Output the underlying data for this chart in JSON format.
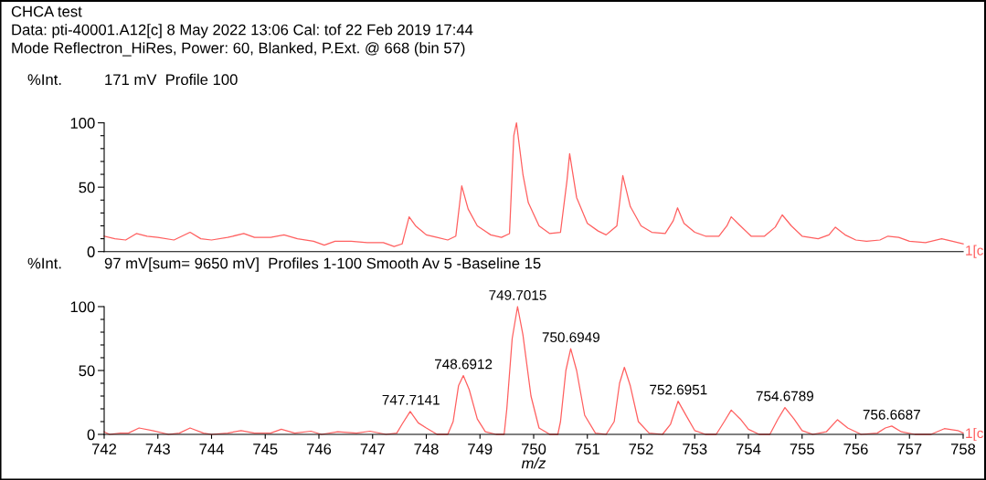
{
  "chart_data": [
    {
      "type": "line",
      "title": "CHCA test",
      "subtitle": "Data: pti-40001.A12[c] 8 May 2022 13:06 Cal: tof 22 Feb 2019 17:44\nMode Reflectron_HiRes, Power: 60, Blanked, P.Ext. @ 668 (bin 57)",
      "ylabel": "%Int.",
      "annotations": [
        "171 mV  Profile 100"
      ],
      "xlim": [
        742,
        758
      ],
      "ylim": [
        0,
        100
      ],
      "yticks": [
        0,
        {
          "value": 10,
          "label": null
        },
        {
          "value": 20,
          "label": null
        },
        {
          "value": 30,
          "label": null
        },
        {
          "value": 40,
          "label": null
        },
        50,
        {
          "value": 60,
          "label": null
        },
        {
          "value": 70,
          "label": null
        },
        {
          "value": 80,
          "label": null
        },
        {
          "value": 90,
          "label": null
        },
        100
      ],
      "tick_labels": "y",
      "grid": false,
      "legend": false,
      "series": [
        {
          "name": "1[c",
          "color": "#ff5f5f",
          "x": [
            742.0,
            742.2,
            742.4,
            742.6,
            742.8,
            743.0,
            743.3,
            743.6,
            743.8,
            744.0,
            744.3,
            744.6,
            744.8,
            745.1,
            745.35,
            745.6,
            745.9,
            746.1,
            746.3,
            746.6,
            746.9,
            747.2,
            747.4,
            747.55,
            747.68,
            747.8,
            748.0,
            748.2,
            748.4,
            748.55,
            748.66,
            748.78,
            748.95,
            749.2,
            749.4,
            749.55,
            749.63,
            749.68,
            749.8,
            749.9,
            750.1,
            750.3,
            750.5,
            750.62,
            750.67,
            750.8,
            751.0,
            751.2,
            751.35,
            751.55,
            751.66,
            751.8,
            752.0,
            752.2,
            752.45,
            752.6,
            752.68,
            752.8,
            753.0,
            753.2,
            753.45,
            753.6,
            753.68,
            753.85,
            754.05,
            754.3,
            754.5,
            754.63,
            754.8,
            755.0,
            755.3,
            755.5,
            755.62,
            755.8,
            756.0,
            756.2,
            756.45,
            756.6,
            756.8,
            757.0,
            757.3,
            757.6,
            757.8,
            758.0
          ],
          "values": [
            12,
            10,
            9,
            14,
            12,
            11,
            9,
            15,
            10,
            9,
            11,
            14,
            11,
            11,
            13,
            10,
            8,
            5,
            8,
            8,
            7,
            7,
            4,
            6,
            27,
            20,
            13,
            11,
            9,
            12,
            51,
            33,
            20,
            13,
            11,
            14,
            90,
            100,
            60,
            38,
            20,
            14,
            15,
            55,
            76,
            42,
            22,
            16,
            13,
            20,
            59,
            35,
            20,
            15,
            14,
            24,
            34,
            22,
            15,
            12,
            12,
            20,
            27,
            20,
            12,
            12,
            19,
            28.5,
            20,
            12,
            10,
            13,
            19,
            13,
            9,
            8,
            9,
            12,
            11,
            8,
            7,
            10,
            8,
            6
          ]
        }
      ]
    },
    {
      "type": "line",
      "ylabel": "%Int.",
      "xlabel": "m/z",
      "annotations": [
        "97 mV[sum= 9650 mV]  Profiles 1-100 Smooth Av 5 -Baseline 15",
        {
          "text": "747.7141",
          "x": 747.7141,
          "y": 18
        },
        {
          "text": "748.6912",
          "x": 748.6912,
          "y": 46
        },
        {
          "text": "749.7015",
          "x": 749.7015,
          "y": 100
        },
        {
          "text": "750.6949",
          "x": 750.6949,
          "y": 67
        },
        {
          "text": "752.6951",
          "x": 752.6951,
          "y": 26
        },
        {
          "text": "754.6789",
          "x": 754.6789,
          "y": 21
        },
        {
          "text": "756.6687",
          "x": 756.6687,
          "y": 6.5
        }
      ],
      "xlim": [
        742,
        758
      ],
      "xticks": [
        742,
        743,
        744,
        745,
        746,
        747,
        748,
        749,
        750,
        751,
        752,
        753,
        754,
        755,
        756,
        757,
        758
      ],
      "ylim": [
        0,
        100
      ],
      "yticks": [
        0,
        {
          "value": 10,
          "label": null
        },
        {
          "value": 20,
          "label": null
        },
        {
          "value": 30,
          "label": null
        },
        {
          "value": 40,
          "label": null
        },
        50,
        {
          "value": 60,
          "label": null
        },
        {
          "value": 70,
          "label": null
        },
        {
          "value": 80,
          "label": null
        },
        {
          "value": 90,
          "label": null
        },
        100
      ],
      "grid": false,
      "legend": false,
      "series": [
        {
          "name": "1[c",
          "color": "#ff5f5f",
          "x": [
            742.0,
            742.1,
            742.3,
            742.45,
            742.65,
            742.9,
            743.2,
            743.4,
            743.6,
            743.85,
            744.0,
            744.3,
            744.55,
            744.8,
            745.1,
            745.3,
            745.55,
            745.85,
            746.05,
            746.35,
            746.7,
            746.95,
            747.25,
            747.45,
            747.55,
            747.7,
            747.85,
            748.0,
            748.2,
            748.4,
            748.5,
            748.6,
            748.69,
            748.8,
            748.95,
            749.1,
            749.3,
            749.45,
            749.5,
            749.6,
            749.7,
            749.8,
            749.95,
            750.1,
            750.3,
            750.45,
            750.5,
            750.6,
            750.69,
            750.8,
            750.95,
            751.15,
            751.35,
            751.5,
            751.6,
            751.69,
            751.8,
            751.95,
            752.15,
            752.4,
            752.55,
            752.69,
            752.85,
            753.0,
            753.2,
            753.4,
            753.55,
            753.68,
            753.85,
            754.0,
            754.2,
            754.4,
            754.55,
            754.68,
            754.85,
            755.0,
            755.2,
            755.45,
            755.66,
            755.85,
            756.1,
            756.4,
            756.55,
            756.67,
            756.85,
            757.1,
            757.4,
            757.65,
            757.9,
            758.0
          ],
          "values": [
            2,
            0,
            1,
            1,
            5,
            3,
            0,
            1,
            5,
            1,
            0,
            1,
            3,
            1,
            1,
            4,
            1,
            2.5,
            0,
            2,
            1,
            2.5,
            0,
            1,
            8,
            18,
            9,
            5,
            0,
            0,
            10,
            38,
            46,
            35,
            12,
            2,
            0,
            0,
            20,
            75,
            100,
            78,
            30,
            5,
            0,
            0,
            10,
            50,
            67,
            50,
            15,
            1,
            0,
            10,
            40,
            52.5,
            38,
            10,
            1,
            0,
            8,
            26,
            14,
            3,
            0,
            0,
            10,
            19,
            12,
            4,
            0,
            0,
            12,
            21,
            12,
            3,
            0,
            2,
            11.5,
            5,
            0,
            1,
            5,
            6.5,
            2,
            0,
            0,
            4.5,
            3,
            1
          ]
        }
      ]
    }
  ]
}
